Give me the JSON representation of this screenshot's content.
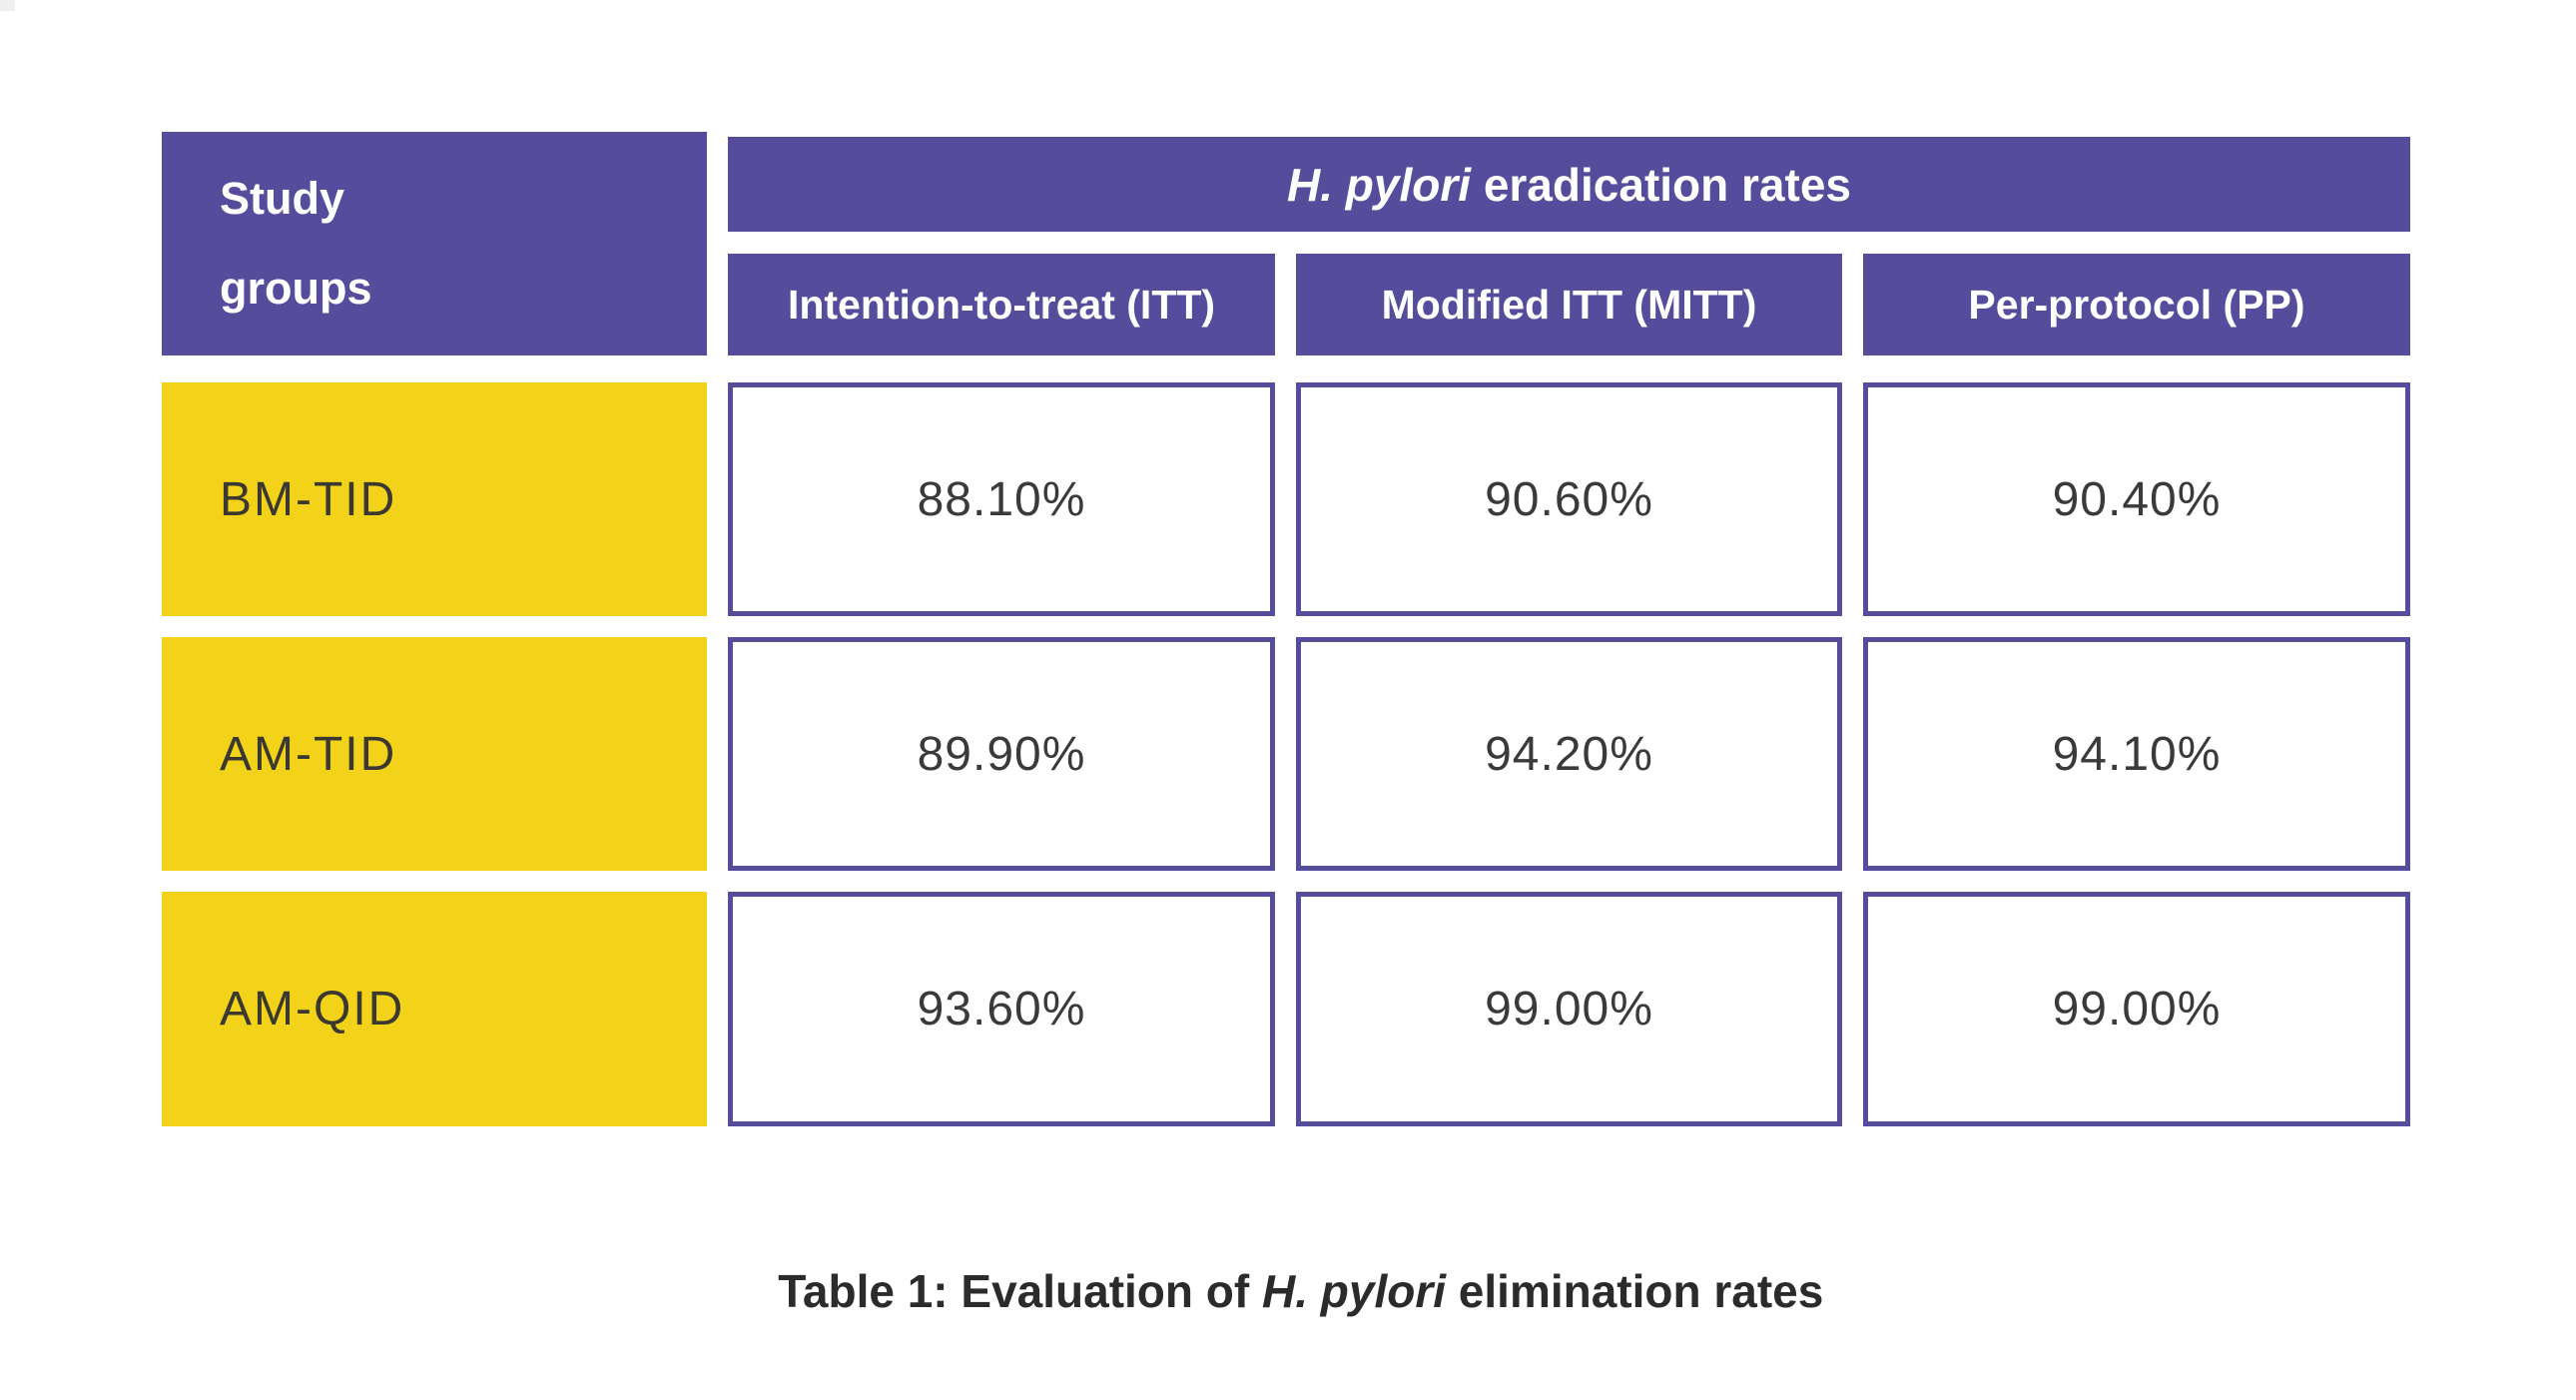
{
  "table": {
    "corner_header": {
      "line1": "Study",
      "line2": "groups"
    },
    "band_title": {
      "italic": "H. pylori",
      "rest": " eradication rates"
    },
    "column_headers": [
      "Intention-to-treat (ITT)",
      "Modified ITT (MITT)",
      "Per-protocol (PP)"
    ],
    "rows": [
      {
        "label": "BM-TID",
        "values": [
          "88.10%",
          "90.60%",
          "90.40%"
        ]
      },
      {
        "label": "AM-TID",
        "values": [
          "89.90%",
          "94.20%",
          "94.10%"
        ]
      },
      {
        "label": "AM-QID",
        "values": [
          "93.60%",
          "99.00%",
          "99.00%"
        ]
      }
    ]
  },
  "caption": {
    "prefix": "Table 1: Evaluation of ",
    "italic": "H. pylori",
    "suffix": " elimination rates"
  },
  "colors": {
    "header_purple": "#564C9C",
    "row_label_yellow": "#F2D319",
    "cell_border_purple": "#564C9C",
    "header_text": "#ffffff",
    "value_text": "#3A3A3A",
    "label_text": "#3A382F",
    "caption_text": "#2D2A2A",
    "background": "#ffffff"
  },
  "chart_data": {
    "type": "table",
    "title": "H. pylori eradication rates",
    "caption": "Table 1: Evaluation of H. pylori elimination rates",
    "row_header": "Study groups",
    "columns": [
      "Intention-to-treat (ITT)",
      "Modified ITT (MITT)",
      "Per-protocol (PP)"
    ],
    "row_labels": [
      "BM-TID",
      "AM-TID",
      "AM-QID"
    ],
    "values_percent": [
      [
        88.1,
        90.6,
        90.4
      ],
      [
        89.9,
        94.2,
        94.1
      ],
      [
        93.6,
        99.0,
        99.0
      ]
    ]
  }
}
